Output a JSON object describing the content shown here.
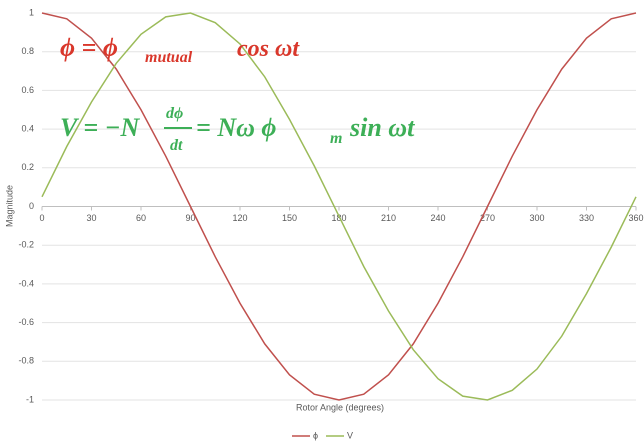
{
  "chart_data": {
    "type": "line",
    "x_label": "Rotor Angle (degrees)",
    "y_label": "Magnitude",
    "x": [
      0,
      15,
      30,
      45,
      60,
      75,
      90,
      105,
      120,
      135,
      150,
      165,
      180,
      195,
      210,
      225,
      240,
      255,
      270,
      285,
      300,
      315,
      330,
      345,
      360
    ],
    "series": [
      {
        "name": "ϕ",
        "color": "#c0504d",
        "values": [
          1,
          0.97,
          0.87,
          0.71,
          0.5,
          0.26,
          0,
          -0.26,
          -0.5,
          -0.71,
          -0.87,
          -0.97,
          -1,
          -0.97,
          -0.87,
          -0.71,
          -0.5,
          -0.26,
          0,
          0.26,
          0.5,
          0.71,
          0.87,
          0.97,
          1
        ]
      },
      {
        "name": "V",
        "color": "#9bbb59",
        "values": [
          0.05,
          0.31,
          0.54,
          0.74,
          0.89,
          0.98,
          1,
          0.95,
          0.84,
          0.67,
          0.45,
          0.21,
          -0.05,
          -0.31,
          -0.54,
          -0.74,
          -0.89,
          -0.98,
          -1,
          -0.95,
          -0.84,
          -0.67,
          -0.45,
          -0.21,
          0.05
        ]
      }
    ],
    "xlim": [
      0,
      360
    ],
    "xticks": [
      0,
      30,
      60,
      90,
      120,
      150,
      180,
      210,
      240,
      270,
      300,
      330,
      360
    ],
    "ylim": [
      -1,
      1
    ],
    "yticks": [
      -1,
      -0.8,
      -0.6,
      -0.4,
      -0.2,
      0,
      0.2,
      0.4,
      0.6,
      0.8,
      1
    ],
    "grid": true,
    "legend": "bottom",
    "annotations": [
      {
        "color": "#d9372b",
        "parts": [
          "ϕ = ϕ",
          "mutual",
          "cos ωt"
        ]
      },
      {
        "color": "#3daf57",
        "parts": [
          "V = −N",
          "dϕ",
          "dt",
          "= Nω ϕ",
          "m",
          "sin ωt"
        ]
      }
    ]
  }
}
